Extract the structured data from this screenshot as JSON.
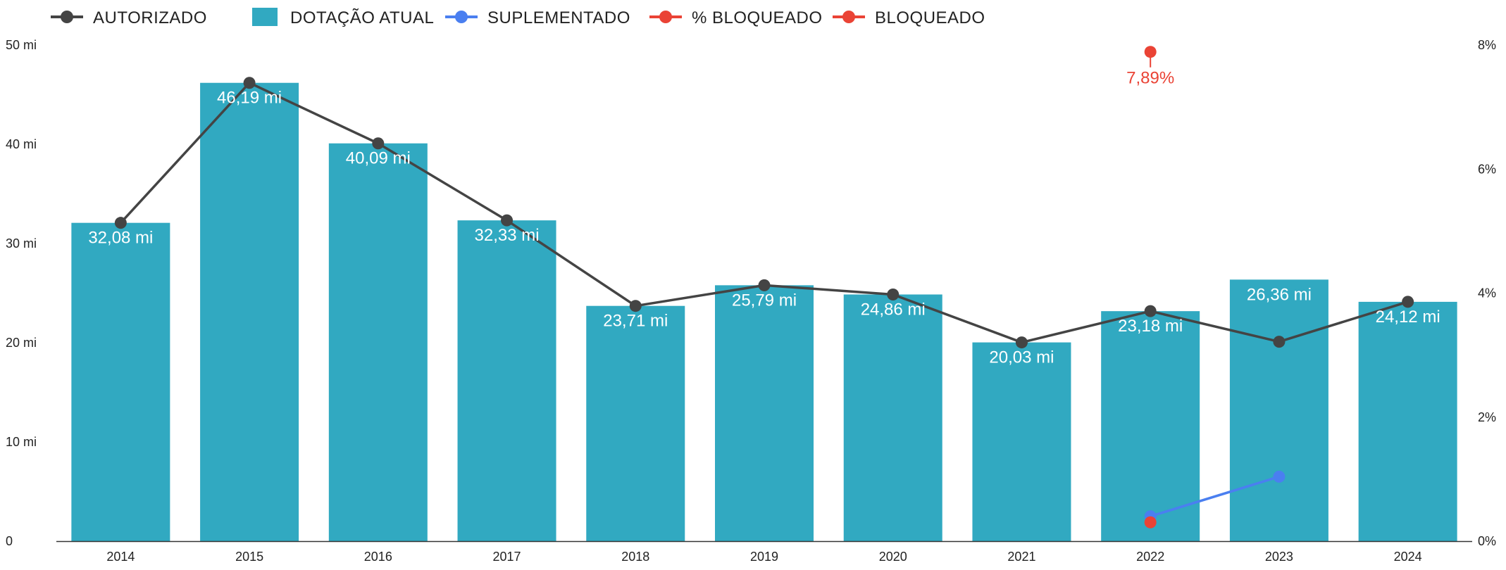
{
  "chart_data": {
    "type": "bar",
    "categories": [
      "2014",
      "2015",
      "2016",
      "2017",
      "2018",
      "2019",
      "2020",
      "2021",
      "2022",
      "2023",
      "2024"
    ],
    "legend_position": "top-left",
    "grid": false,
    "y_left": {
      "range": [
        0,
        50
      ],
      "ticks": [
        "0",
        "10 mi",
        "20 mi",
        "30 mi",
        "40 mi",
        "50 mi"
      ],
      "tick_values": [
        0,
        10,
        20,
        30,
        40,
        50
      ]
    },
    "y_right": {
      "range": [
        0,
        8
      ],
      "ticks": [
        "0%",
        "2%",
        "4%",
        "6%",
        "8%"
      ],
      "tick_values": [
        0,
        2,
        4,
        6,
        8
      ]
    },
    "series": [
      {
        "name": "AUTORIZADO",
        "kind": "line",
        "axis": "left",
        "color": "#444444",
        "values": [
          32.08,
          46.19,
          40.09,
          32.33,
          23.71,
          25.79,
          24.86,
          20.03,
          23.18,
          20.1,
          24.12
        ]
      },
      {
        "name": "DOTAÇÃO ATUAL",
        "kind": "bar",
        "axis": "left",
        "color": "#31a9c1",
        "values": [
          32.08,
          46.19,
          40.09,
          32.33,
          23.71,
          25.79,
          24.86,
          20.03,
          23.18,
          26.36,
          24.12
        ],
        "labels": [
          "32,08 mi",
          "46,19 mi",
          "40,09 mi",
          "32,33 mi",
          "23,71 mi",
          "25,79 mi",
          "24,86 mi",
          "20,03 mi",
          "23,18 mi",
          "26,36 mi",
          "24,12 mi"
        ]
      },
      {
        "name": "SUPLEMENTADO",
        "kind": "line",
        "axis": "left",
        "color": "#4a7ff0",
        "values": [
          null,
          null,
          null,
          null,
          null,
          null,
          null,
          null,
          2.5,
          6.5,
          null
        ]
      },
      {
        "name": "% BLOQUEADO",
        "kind": "line",
        "axis": "right",
        "color": "#ea4335",
        "values": [
          null,
          null,
          null,
          null,
          null,
          null,
          null,
          null,
          7.89,
          null,
          null
        ],
        "labels": [
          null,
          null,
          null,
          null,
          null,
          null,
          null,
          null,
          "7,89%",
          null,
          null
        ]
      },
      {
        "name": "BLOQUEADO",
        "kind": "line",
        "axis": "left",
        "color": "#ea4335",
        "values": [
          null,
          null,
          null,
          null,
          null,
          null,
          null,
          null,
          1.9,
          null,
          null
        ]
      }
    ]
  }
}
